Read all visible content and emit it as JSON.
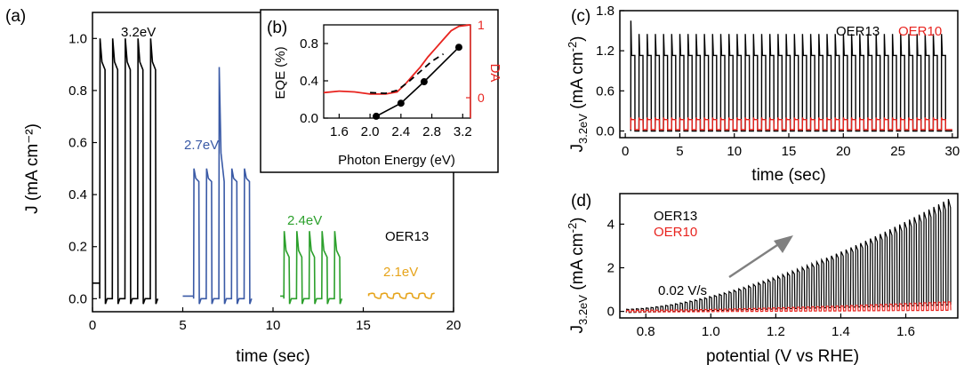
{
  "colors": {
    "black": "#000000",
    "blue": "#3a5aa6",
    "green": "#2ca02c",
    "orange": "#e6a41b",
    "red": "#e8241f",
    "gray_arrow": "#808080"
  },
  "chart_data": [
    {
      "panel": "(a)",
      "type": "line",
      "xlabel": "time (sec)",
      "ylabel": "J (mA cm⁻²)",
      "xlim": [
        0,
        20
      ],
      "ylim": [
        -0.05,
        1.1
      ],
      "xticks": [
        0,
        5,
        10,
        15,
        20
      ],
      "yticks": [
        0.0,
        0.2,
        0.4,
        0.6,
        0.8,
        1.0
      ],
      "annotations": [
        "3.2eV",
        "2.7eV",
        "2.4eV",
        "2.1eV",
        "OER13"
      ],
      "series": [
        {
          "label": "3.2eV",
          "color": "black",
          "t_start": 0,
          "t_end": 3.8,
          "base": 0.06,
          "period": 0.7,
          "first_on": 0.4,
          "duty": 0.42,
          "peak": 1.0,
          "plateau": 0.88,
          "dark": 0.0,
          "first_peak": 1.0
        },
        {
          "label": "2.7eV",
          "color": "blue",
          "t_start": 5.0,
          "t_end": 8.8,
          "base": 0.01,
          "period": 0.7,
          "first_on": 5.6,
          "duty": 0.42,
          "peak": 0.5,
          "plateau": 0.45,
          "dark": 0.0,
          "spike_index": 2,
          "spike": 0.89
        },
        {
          "label": "2.4eV",
          "color": "green",
          "t_start": 10.4,
          "t_end": 14.0,
          "base": 0.01,
          "period": 0.7,
          "first_on": 10.6,
          "duty": 0.42,
          "peak": 0.26,
          "plateau": 0.16,
          "dark": 0.0
        },
        {
          "label": "2.1eV",
          "color": "orange",
          "t_start": 15.3,
          "t_end": 19.0,
          "base": 0.01,
          "period": 0.7,
          "first_on": 15.3,
          "duty": 0.5,
          "peak": 0.02,
          "plateau": 0.015,
          "dark": 0.005
        }
      ]
    },
    {
      "panel": "(b)",
      "type": "line",
      "xlabel": "Photon Energy (eV)",
      "ylabel": "EQE (%)",
      "ylabel_right": "DA",
      "xlim": [
        1.4,
        3.3
      ],
      "ylim": [
        0,
        1.0
      ],
      "ylim_right": [
        -0.28,
        1.0
      ],
      "xticks": [
        1.6,
        2.0,
        2.4,
        2.8,
        3.2
      ],
      "yticks": [
        0.0,
        0.4,
        0.8
      ],
      "yticks_right": [
        0,
        1
      ],
      "series": [
        {
          "name": "EQE",
          "color": "black",
          "axis": "left",
          "x": [
            2.08,
            2.4,
            2.7,
            3.15
          ],
          "y": [
            0.02,
            0.16,
            0.39,
            0.76
          ]
        },
        {
          "name": "DA",
          "color": "red",
          "axis": "right",
          "x": [
            1.4,
            1.6,
            1.8,
            2.0,
            2.2,
            2.35,
            2.45,
            2.55,
            2.65,
            2.75,
            2.85,
            2.95,
            3.05,
            3.15,
            3.3
          ],
          "y": [
            0.07,
            0.09,
            0.08,
            0.05,
            0.05,
            0.08,
            0.18,
            0.3,
            0.42,
            0.56,
            0.68,
            0.8,
            0.92,
            0.98,
            1.0
          ]
        },
        {
          "name": "DA dashed",
          "color": "black",
          "axis": "right",
          "dashed": true,
          "x": [
            2.0,
            2.2,
            2.35,
            2.5,
            2.65,
            2.8,
            2.95
          ],
          "y": [
            0.07,
            0.06,
            0.1,
            0.22,
            0.36,
            0.5,
            0.6
          ]
        }
      ]
    },
    {
      "panel": "(c)",
      "type": "line",
      "xlabel": "time (sec)",
      "ylabel": "J3.2eV (mA cm⁻²)",
      "xlim": [
        -0.5,
        30.5
      ],
      "ylim": [
        -0.1,
        1.8
      ],
      "xticks": [
        0,
        5,
        10,
        15,
        20,
        25,
        30
      ],
      "yticks": [
        0.0,
        0.6,
        1.2,
        1.8
      ],
      "legend": [
        "OER13",
        "OER10"
      ],
      "series": [
        {
          "name": "OER13",
          "color": "black",
          "t_start": 0.5,
          "t_end": 30.0,
          "period": 0.75,
          "duty": 0.5,
          "first_peak": 1.65,
          "peak": 1.45,
          "plateau": 1.13,
          "dark": 0.0
        },
        {
          "name": "OER10",
          "color": "red",
          "t_start": 0.5,
          "t_end": 30.0,
          "period": 0.75,
          "duty": 0.5,
          "peak": 0.2,
          "plateau": 0.17,
          "dark": 0.02
        }
      ]
    },
    {
      "panel": "(d)",
      "type": "line",
      "xlabel": "potential (V vs RHE)",
      "ylabel": "J3.2eV (mA cm⁻²)",
      "xlim": [
        0.72,
        1.76
      ],
      "ylim": [
        -0.3,
        5.4
      ],
      "xticks": [
        0.8,
        1.0,
        1.2,
        1.4,
        1.6
      ],
      "yticks": [
        0,
        2,
        4
      ],
      "legend": [
        "OER13",
        "OER10"
      ],
      "annotations": [
        "0.02 V/s"
      ],
      "series": [
        {
          "name": "OER13",
          "color": "black",
          "v_start": 0.74,
          "v_end": 1.73,
          "step": 0.015,
          "peak_start": 0.1,
          "peak_end": 5.15,
          "dark_start": -0.05,
          "dark_end": 0.3
        },
        {
          "name": "OER10",
          "color": "red",
          "v_start": 0.74,
          "v_end": 1.73,
          "step": 0.015,
          "peak_start": 0.05,
          "peak_end": 0.45,
          "dark_start": -0.03,
          "dark_end": 0.05
        }
      ]
    }
  ]
}
